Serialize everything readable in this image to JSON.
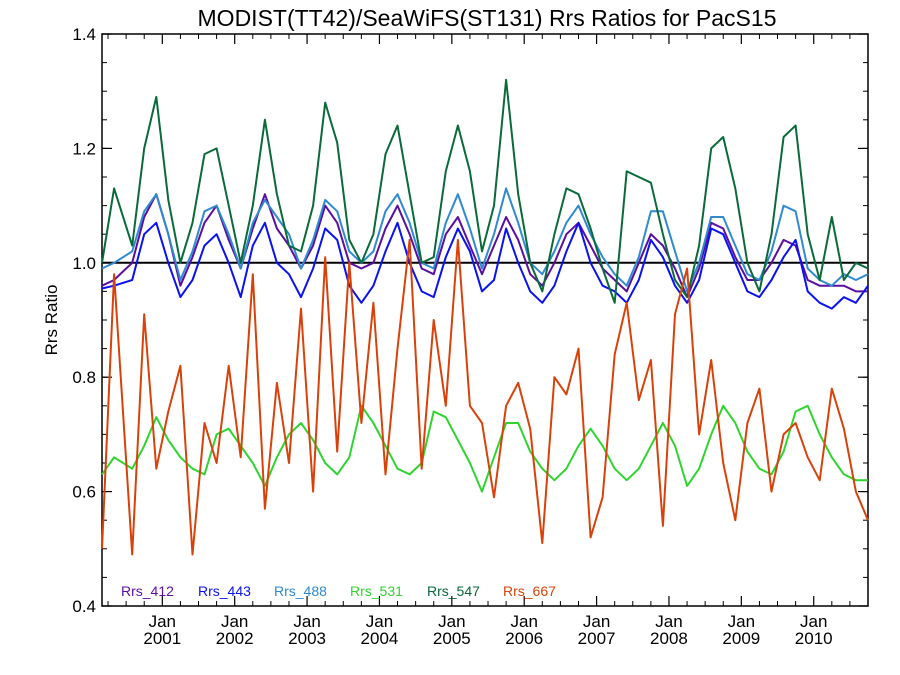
{
  "chart_data": {
    "type": "line",
    "title": "MODIST(TT42)/SeaWiFS(ST131)  Rrs Ratios for PacS15",
    "xlabel": "",
    "ylabel": "Rrs Ratio",
    "xlim": [
      "2000-03",
      "2010-10"
    ],
    "ylim": [
      0.4,
      1.4
    ],
    "yticks": [
      "0.4",
      "0.6",
      "0.8",
      "1.0",
      "1.2",
      "1.4"
    ],
    "xtick_top": "Jan",
    "xtick_years": [
      "2001",
      "2002",
      "2003",
      "2004",
      "2005",
      "2006",
      "2007",
      "2008",
      "2009",
      "2010"
    ],
    "reference_line": 1.0,
    "legend_position": "bottom-left, inside plot",
    "series": [
      {
        "name": "Rrs_412",
        "color": "#5a0fa0",
        "x": [
          "2000-03",
          "2000-05",
          "2000-08",
          "2000-10",
          "2000-12",
          "2001-02",
          "2001-04",
          "2001-06",
          "2001-08",
          "2001-10",
          "2001-12",
          "2002-02",
          "2002-04",
          "2002-06",
          "2002-08",
          "2002-10",
          "2002-12",
          "2003-02",
          "2003-04",
          "2003-06",
          "2003-08",
          "2003-10",
          "2003-12",
          "2004-02",
          "2004-04",
          "2004-06",
          "2004-08",
          "2004-10",
          "2004-12",
          "2005-02",
          "2005-04",
          "2005-06",
          "2005-08",
          "2005-10",
          "2005-12",
          "2006-02",
          "2006-04",
          "2006-06",
          "2006-08",
          "2006-10",
          "2006-12",
          "2007-02",
          "2007-04",
          "2007-06",
          "2007-08",
          "2007-10",
          "2007-12",
          "2008-02",
          "2008-04",
          "2008-06",
          "2008-08",
          "2008-10",
          "2008-12",
          "2009-02",
          "2009-04",
          "2009-06",
          "2009-08",
          "2009-10",
          "2009-12",
          "2010-02",
          "2010-04",
          "2010-06",
          "2010-08",
          "2010-10"
        ],
        "y": [
          0.96,
          0.97,
          1.0,
          1.08,
          1.12,
          1.05,
          0.96,
          1.01,
          1.07,
          1.1,
          1.04,
          0.99,
          1.06,
          1.12,
          1.06,
          1.03,
          0.99,
          1.03,
          1.1,
          1.07,
          1.0,
          0.99,
          1.0,
          1.06,
          1.1,
          1.05,
          0.99,
          0.98,
          1.05,
          1.08,
          1.03,
          0.98,
          1.03,
          1.08,
          1.04,
          0.98,
          0.96,
          1.0,
          1.05,
          1.07,
          1.03,
          0.99,
          0.97,
          0.95,
          1.0,
          1.05,
          1.03,
          0.99,
          0.94,
          0.99,
          1.07,
          1.06,
          1.01,
          0.97,
          0.97,
          1.0,
          1.04,
          1.03,
          0.97,
          0.96,
          0.96,
          0.96,
          0.95,
          0.95
        ]
      },
      {
        "name": "Rrs_443",
        "color": "#0a12f0",
        "x": [
          "2000-03",
          "2000-05",
          "2000-08",
          "2000-10",
          "2000-12",
          "2001-02",
          "2001-04",
          "2001-06",
          "2001-08",
          "2001-10",
          "2001-12",
          "2002-02",
          "2002-04",
          "2002-06",
          "2002-08",
          "2002-10",
          "2002-12",
          "2003-02",
          "2003-04",
          "2003-06",
          "2003-08",
          "2003-10",
          "2003-12",
          "2004-02",
          "2004-04",
          "2004-06",
          "2004-08",
          "2004-10",
          "2004-12",
          "2005-02",
          "2005-04",
          "2005-06",
          "2005-08",
          "2005-10",
          "2005-12",
          "2006-02",
          "2006-04",
          "2006-06",
          "2006-08",
          "2006-10",
          "2006-12",
          "2007-02",
          "2007-04",
          "2007-06",
          "2007-08",
          "2007-10",
          "2007-12",
          "2008-02",
          "2008-04",
          "2008-06",
          "2008-08",
          "2008-10",
          "2008-12",
          "2009-02",
          "2009-04",
          "2009-06",
          "2009-08",
          "2009-10",
          "2009-12",
          "2010-02",
          "2010-04",
          "2010-06",
          "2010-08",
          "2010-10"
        ],
        "y": [
          0.955,
          0.96,
          0.97,
          1.05,
          1.07,
          1.0,
          0.94,
          0.97,
          1.03,
          1.05,
          1.0,
          0.94,
          1.03,
          1.07,
          1.0,
          0.98,
          0.94,
          0.99,
          1.06,
          1.04,
          0.96,
          0.93,
          0.96,
          1.02,
          1.07,
          1.0,
          0.95,
          0.94,
          1.01,
          1.06,
          1.02,
          0.95,
          0.97,
          1.06,
          1.0,
          0.95,
          0.93,
          0.96,
          1.02,
          1.07,
          1.0,
          0.96,
          0.95,
          0.93,
          0.97,
          1.04,
          1.01,
          0.96,
          0.93,
          0.97,
          1.06,
          1.05,
          1.0,
          0.95,
          0.94,
          0.97,
          1.01,
          1.04,
          0.95,
          0.93,
          0.92,
          0.94,
          0.93,
          0.96
        ]
      },
      {
        "name": "Rrs_488",
        "color": "#2f8ad0",
        "x": [
          "2000-03",
          "2000-05",
          "2000-08",
          "2000-10",
          "2000-12",
          "2001-02",
          "2001-04",
          "2001-06",
          "2001-08",
          "2001-10",
          "2001-12",
          "2002-02",
          "2002-04",
          "2002-06",
          "2002-08",
          "2002-10",
          "2002-12",
          "2003-02",
          "2003-04",
          "2003-06",
          "2003-08",
          "2003-10",
          "2003-12",
          "2004-02",
          "2004-04",
          "2004-06",
          "2004-08",
          "2004-10",
          "2004-12",
          "2005-02",
          "2005-04",
          "2005-06",
          "2005-08",
          "2005-10",
          "2005-12",
          "2006-02",
          "2006-04",
          "2006-06",
          "2006-08",
          "2006-10",
          "2006-12",
          "2007-02",
          "2007-04",
          "2007-06",
          "2007-08",
          "2007-10",
          "2007-12",
          "2008-02",
          "2008-04",
          "2008-06",
          "2008-08",
          "2008-10",
          "2008-12",
          "2009-02",
          "2009-04",
          "2009-06",
          "2009-08",
          "2009-10",
          "2009-12",
          "2010-02",
          "2010-04",
          "2010-06",
          "2010-08",
          "2010-10"
        ],
        "y": [
          0.99,
          1.0,
          1.02,
          1.09,
          1.12,
          1.05,
          0.97,
          1.02,
          1.09,
          1.1,
          1.05,
          0.99,
          1.07,
          1.11,
          1.08,
          1.05,
          0.99,
          1.04,
          1.11,
          1.09,
          1.02,
          1.0,
          1.02,
          1.09,
          1.12,
          1.07,
          1.0,
          0.99,
          1.07,
          1.12,
          1.06,
          0.99,
          1.05,
          1.13,
          1.07,
          1.0,
          0.98,
          1.02,
          1.07,
          1.1,
          1.05,
          1.01,
          0.98,
          0.96,
          1.01,
          1.09,
          1.09,
          1.02,
          0.95,
          1.0,
          1.08,
          1.08,
          1.03,
          0.98,
          0.97,
          1.02,
          1.1,
          1.09,
          0.99,
          0.97,
          0.96,
          0.98,
          0.97,
          0.98
        ]
      },
      {
        "name": "Rrs_531",
        "color": "#2fd42f",
        "x": [
          "2000-03",
          "2000-05",
          "2000-08",
          "2000-10",
          "2000-12",
          "2001-02",
          "2001-04",
          "2001-06",
          "2001-08",
          "2001-10",
          "2001-12",
          "2002-02",
          "2002-04",
          "2002-06",
          "2002-08",
          "2002-10",
          "2002-12",
          "2003-02",
          "2003-04",
          "2003-06",
          "2003-08",
          "2003-10",
          "2003-12",
          "2004-02",
          "2004-04",
          "2004-06",
          "2004-08",
          "2004-10",
          "2004-12",
          "2005-02",
          "2005-04",
          "2005-06",
          "2005-08",
          "2005-10",
          "2005-12",
          "2006-02",
          "2006-04",
          "2006-06",
          "2006-08",
          "2006-10",
          "2006-12",
          "2007-02",
          "2007-04",
          "2007-06",
          "2007-08",
          "2007-10",
          "2007-12",
          "2008-02",
          "2008-04",
          "2008-06",
          "2008-08",
          "2008-10",
          "2008-12",
          "2009-02",
          "2009-04",
          "2009-06",
          "2009-08",
          "2009-10",
          "2009-12",
          "2010-02",
          "2010-04",
          "2010-06",
          "2010-08",
          "2010-10"
        ],
        "y": [
          0.63,
          0.66,
          0.64,
          0.68,
          0.73,
          0.69,
          0.66,
          0.64,
          0.63,
          0.7,
          0.71,
          0.68,
          0.65,
          0.61,
          0.66,
          0.7,
          0.72,
          0.69,
          0.65,
          0.63,
          0.66,
          0.75,
          0.72,
          0.68,
          0.64,
          0.63,
          0.65,
          0.74,
          0.73,
          0.69,
          0.65,
          0.6,
          0.66,
          0.72,
          0.72,
          0.67,
          0.64,
          0.62,
          0.64,
          0.68,
          0.71,
          0.68,
          0.64,
          0.62,
          0.64,
          0.68,
          0.72,
          0.68,
          0.61,
          0.64,
          0.7,
          0.75,
          0.72,
          0.67,
          0.64,
          0.63,
          0.67,
          0.74,
          0.75,
          0.7,
          0.66,
          0.63,
          0.62,
          0.62
        ]
      },
      {
        "name": "Rrs_547",
        "color": "#0a6a3a",
        "x": [
          "2000-03",
          "2000-05",
          "2000-08",
          "2000-10",
          "2000-12",
          "2001-02",
          "2001-04",
          "2001-06",
          "2001-08",
          "2001-10",
          "2001-12",
          "2002-02",
          "2002-04",
          "2002-06",
          "2002-08",
          "2002-10",
          "2002-12",
          "2003-02",
          "2003-04",
          "2003-06",
          "2003-08",
          "2003-10",
          "2003-12",
          "2004-02",
          "2004-04",
          "2004-06",
          "2004-08",
          "2004-10",
          "2004-12",
          "2005-02",
          "2005-04",
          "2005-06",
          "2005-08",
          "2005-10",
          "2005-12",
          "2006-02",
          "2006-04",
          "2006-06",
          "2006-08",
          "2006-10",
          "2006-12",
          "2007-02",
          "2007-04",
          "2007-06",
          "2007-08",
          "2007-10",
          "2007-12",
          "2008-02",
          "2008-04",
          "2008-06",
          "2008-08",
          "2008-10",
          "2008-12",
          "2009-02",
          "2009-04",
          "2009-06",
          "2009-08",
          "2009-10",
          "2009-12",
          "2010-02",
          "2010-04",
          "2010-06",
          "2010-08",
          "2010-10"
        ],
        "y": [
          1.0,
          1.13,
          1.03,
          1.2,
          1.29,
          1.11,
          1.0,
          1.07,
          1.19,
          1.2,
          1.1,
          1.0,
          1.1,
          1.25,
          1.12,
          1.03,
          1.02,
          1.1,
          1.28,
          1.21,
          1.04,
          1.0,
          1.05,
          1.19,
          1.24,
          1.12,
          1.0,
          1.01,
          1.16,
          1.24,
          1.16,
          1.02,
          1.1,
          1.32,
          1.12,
          1.0,
          0.95,
          1.05,
          1.13,
          1.12,
          1.06,
          0.99,
          0.93,
          1.16,
          1.15,
          1.14,
          1.05,
          0.97,
          0.94,
          1.03,
          1.2,
          1.22,
          1.13,
          1.0,
          0.95,
          1.05,
          1.22,
          1.24,
          1.05,
          0.97,
          1.08,
          0.97,
          1.0,
          0.99
        ]
      },
      {
        "name": "Rrs_667",
        "color": "#d8420a",
        "x": [
          "2000-03",
          "2000-05",
          "2000-08",
          "2000-10",
          "2000-12",
          "2001-02",
          "2001-04",
          "2001-06",
          "2001-08",
          "2001-10",
          "2001-12",
          "2002-02",
          "2002-04",
          "2002-06",
          "2002-08",
          "2002-10",
          "2002-12",
          "2003-02",
          "2003-04",
          "2003-06",
          "2003-08",
          "2003-10",
          "2003-12",
          "2004-02",
          "2004-04",
          "2004-06",
          "2004-08",
          "2004-10",
          "2004-12",
          "2005-02",
          "2005-04",
          "2005-06",
          "2005-08",
          "2005-10",
          "2005-12",
          "2006-02",
          "2006-04",
          "2006-06",
          "2006-08",
          "2006-10",
          "2006-12",
          "2007-02",
          "2007-04",
          "2007-06",
          "2007-08",
          "2007-10",
          "2007-12",
          "2008-02",
          "2008-04",
          "2008-06",
          "2008-08",
          "2008-10",
          "2008-12",
          "2009-02",
          "2009-04",
          "2009-06",
          "2009-08",
          "2009-10",
          "2009-12",
          "2010-02",
          "2010-04",
          "2010-06",
          "2010-08",
          "2010-10"
        ],
        "y": [
          0.5,
          0.98,
          0.49,
          0.91,
          0.64,
          0.74,
          0.82,
          0.49,
          0.72,
          0.65,
          0.82,
          0.66,
          0.98,
          0.57,
          0.79,
          0.65,
          0.92,
          0.6,
          1.01,
          0.67,
          1.0,
          0.72,
          0.93,
          0.63,
          0.85,
          1.04,
          0.64,
          0.9,
          0.75,
          1.04,
          0.75,
          0.72,
          0.59,
          0.75,
          0.79,
          0.71,
          0.51,
          0.8,
          0.77,
          0.85,
          0.52,
          0.59,
          0.84,
          0.93,
          0.76,
          0.83,
          0.54,
          0.91,
          0.99,
          0.7,
          0.83,
          0.65,
          0.55,
          0.72,
          0.78,
          0.6,
          0.7,
          0.72,
          0.66,
          0.62,
          0.78,
          0.71,
          0.6,
          0.55
        ]
      }
    ]
  }
}
